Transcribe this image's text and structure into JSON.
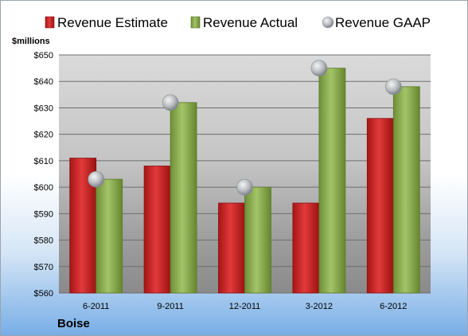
{
  "chart_data": {
    "type": "bar",
    "unit_label": "$millions",
    "categories": [
      "6-2011",
      "9-2011",
      "12-2011",
      "3-2012",
      "6-2012"
    ],
    "series": [
      {
        "name": "Revenue Estimate",
        "kind": "bar",
        "color": "#d42a2a",
        "values": [
          611,
          608,
          594,
          594,
          626
        ]
      },
      {
        "name": "Revenue Actual",
        "kind": "bar",
        "color": "#8fb356",
        "values": [
          603,
          632,
          600,
          645,
          638
        ]
      },
      {
        "name": "Revenue GAAP",
        "kind": "marker",
        "color": "#b8bcc2",
        "values": [
          603,
          632,
          600,
          645,
          638
        ]
      }
    ],
    "ylim": [
      560,
      650
    ],
    "yticks": [
      "$650",
      "$640",
      "$630",
      "$620",
      "$610",
      "$600",
      "$590",
      "$580",
      "$570",
      "$560"
    ],
    "grid": true,
    "legend_position": "top"
  },
  "company": "Boise"
}
